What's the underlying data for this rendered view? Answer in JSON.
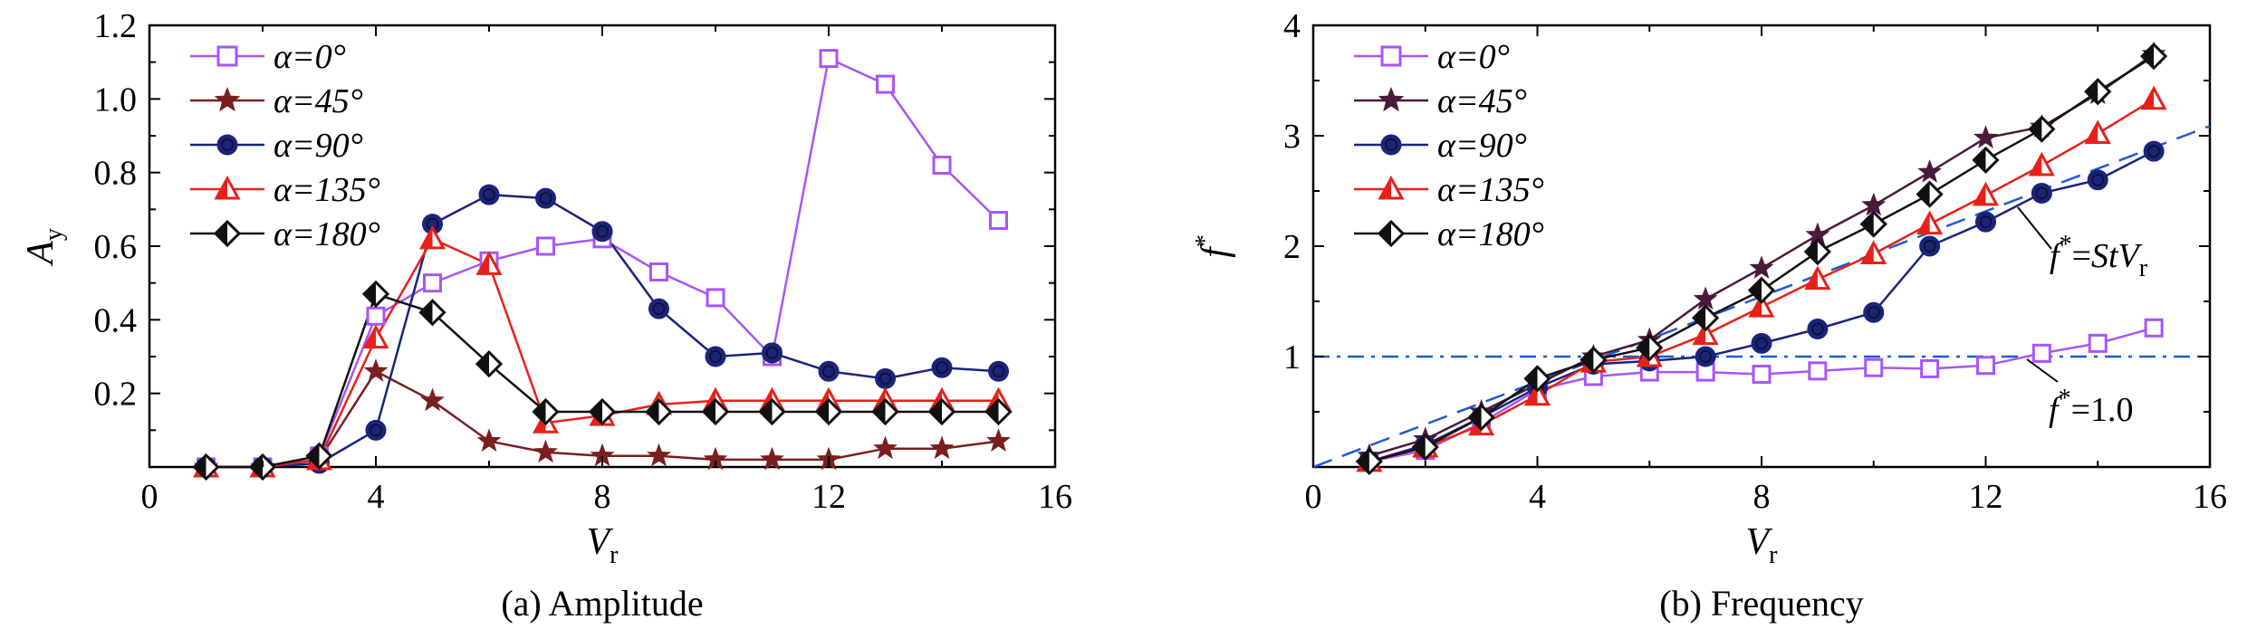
{
  "charts": [
    {
      "caption": "(a) Amplitude",
      "ylabel": "A",
      "ylabel_sub": "y",
      "xlabel": "V",
      "xlabel_sub": "r",
      "xticks": [
        "0",
        "4",
        "8",
        "12",
        "16"
      ],
      "yticks": [
        "0.2",
        "0.4",
        "0.6",
        "0.8",
        "1.0",
        "1.2"
      ],
      "legend": [
        "α=0°",
        "α=45°",
        "α=90°",
        "α=135°",
        "α=180°"
      ]
    },
    {
      "caption": "(b) Frequency",
      "ylabel": "f",
      "ylabel_sup": "*",
      "xlabel": "V",
      "xlabel_sub": "r",
      "xticks": [
        "0",
        "4",
        "8",
        "12",
        "16"
      ],
      "yticks": [
        "1",
        "2",
        "3",
        "4"
      ],
      "legend": [
        "α=0°",
        "α=45°",
        "α=90°",
        "α=135°",
        "α=180°"
      ],
      "annotations": [
        {
          "prefix": "f",
          "sup": "*",
          "eq": "=",
          "tail": "StV",
          "tail_sub": "r"
        },
        {
          "prefix": "f",
          "sup": "*",
          "eq": "=1.0",
          "tail": "",
          "tail_sub": ""
        }
      ]
    }
  ],
  "chart_data": [
    {
      "type": "line",
      "title": "(a) Amplitude",
      "xlabel": "Vr",
      "ylabel": "Ay",
      "xlim": [
        0,
        16
      ],
      "ylim": [
        0,
        1.2
      ],
      "grid": false,
      "legend_position": "top-left",
      "x": [
        1,
        2,
        3,
        4,
        5,
        6,
        7,
        8,
        9,
        10,
        11,
        12,
        13,
        14,
        15
      ],
      "series": [
        {
          "name": "α=0°",
          "color": "#a855f7",
          "marker": "square",
          "values": [
            0.0,
            0.0,
            0.03,
            0.41,
            0.5,
            0.56,
            0.6,
            0.62,
            0.53,
            0.46,
            0.3,
            1.11,
            1.04,
            0.82,
            0.67
          ]
        },
        {
          "name": "α=45°",
          "color": "#7a1f1f",
          "marker": "star",
          "values": [
            0.0,
            0.0,
            0.02,
            0.26,
            0.18,
            0.07,
            0.04,
            0.03,
            0.03,
            0.02,
            0.02,
            0.02,
            0.05,
            0.05,
            0.07
          ]
        },
        {
          "name": "α=90°",
          "color": "#1a237e",
          "marker": "circle",
          "values": [
            0.0,
            0.0,
            0.01,
            0.1,
            0.66,
            0.74,
            0.73,
            0.64,
            0.43,
            0.3,
            0.31,
            0.26,
            0.24,
            0.27,
            0.26
          ]
        },
        {
          "name": "α=135°",
          "color": "#e8201a",
          "marker": "triangle",
          "values": [
            0.0,
            0.0,
            0.02,
            0.35,
            0.62,
            0.55,
            0.12,
            0.14,
            0.17,
            0.18,
            0.18,
            0.18,
            0.18,
            0.18,
            0.18
          ]
        },
        {
          "name": "α=180°",
          "color": "#111111",
          "marker": "diamond",
          "values": [
            0.0,
            0.0,
            0.03,
            0.47,
            0.42,
            0.28,
            0.15,
            0.15,
            0.15,
            0.15,
            0.15,
            0.15,
            0.15,
            0.15,
            0.15
          ]
        }
      ]
    },
    {
      "type": "line",
      "title": "(b) Frequency",
      "xlabel": "Vr",
      "ylabel": "f*",
      "xlim": [
        0,
        16
      ],
      "ylim": [
        0,
        4
      ],
      "grid": false,
      "legend_position": "top-left",
      "x": [
        1,
        2,
        3,
        4,
        5,
        6,
        7,
        8,
        9,
        10,
        11,
        12,
        13,
        14,
        15
      ],
      "series": [
        {
          "name": "α=0°",
          "color": "#a855f7",
          "marker": "square",
          "values": [
            0.05,
            0.15,
            0.4,
            0.7,
            0.82,
            0.86,
            0.86,
            0.84,
            0.87,
            0.9,
            0.89,
            0.92,
            1.03,
            1.12,
            1.26
          ]
        },
        {
          "name": "α=45°",
          "color": "#4a1a3a",
          "marker": "star",
          "values": [
            0.1,
            0.25,
            0.5,
            0.75,
            1.0,
            1.15,
            1.52,
            1.8,
            2.1,
            2.37,
            2.67,
            2.98,
            3.08,
            3.38,
            3.74
          ]
        },
        {
          "name": "α=90°",
          "color": "#1a237e",
          "marker": "circle",
          "values": [
            0.05,
            0.2,
            0.45,
            0.72,
            0.93,
            0.96,
            1.0,
            1.12,
            1.25,
            1.4,
            2.0,
            2.22,
            2.48,
            2.6,
            2.86
          ]
        },
        {
          "name": "α=135°",
          "color": "#e8201a",
          "marker": "triangle",
          "values": [
            0.05,
            0.18,
            0.38,
            0.65,
            0.95,
            1.0,
            1.2,
            1.45,
            1.7,
            1.93,
            2.2,
            2.46,
            2.73,
            3.02,
            3.33
          ]
        },
        {
          "name": "α=180°",
          "color": "#111111",
          "marker": "diamond",
          "values": [
            0.05,
            0.18,
            0.45,
            0.8,
            0.97,
            1.08,
            1.35,
            1.6,
            1.95,
            2.2,
            2.47,
            2.78,
            3.06,
            3.4,
            3.72
          ]
        }
      ],
      "reference_lines": [
        {
          "label": "f*=StVr",
          "style": "dashed",
          "color": "#1e5bd6",
          "slope": 0.193,
          "intercept": 0
        },
        {
          "label": "f*=1.0",
          "style": "dashdot",
          "color": "#1e5bd6",
          "y": 1.0
        }
      ]
    }
  ]
}
